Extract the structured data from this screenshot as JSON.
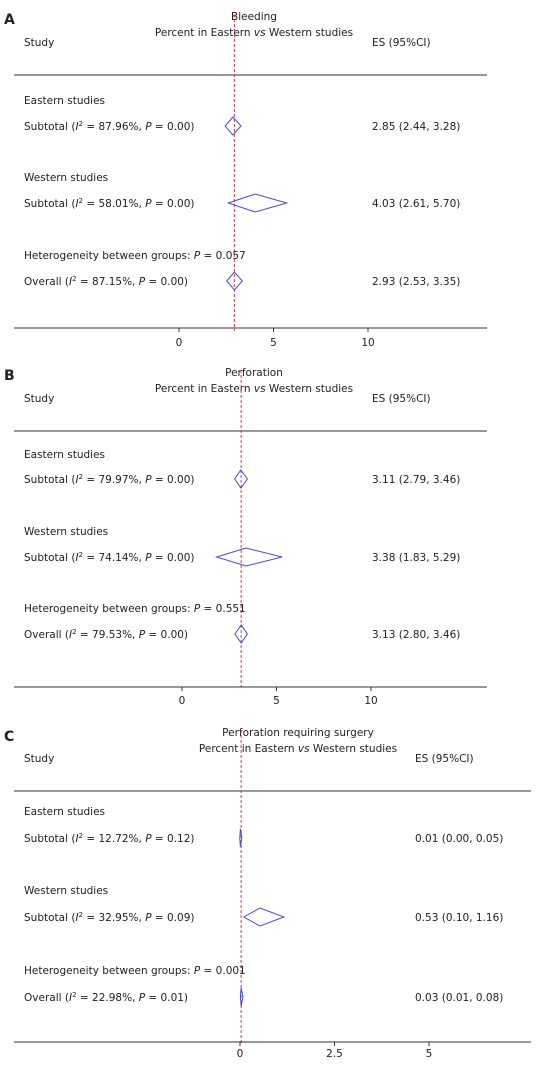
{
  "chart_data": [
    {
      "type": "forest",
      "panel_label": "A",
      "title": "Bleeding",
      "subtitle": "Percent in Eastern vs Western studies",
      "header": {
        "study": "Study",
        "es": "ES (95%CI)"
      },
      "xticks": [
        0,
        5,
        10
      ],
      "xlim": [
        -5.2,
        13.8
      ],
      "null_line": 0,
      "overall_line": 2.93,
      "rows": [
        {
          "kind": "group",
          "label": "Eastern studies"
        },
        {
          "kind": "subtotal",
          "label_pre": "Subtotal (",
          "i2": "I",
          "label_post": " = 87.96%, ",
          "p_label": "P",
          "label_end": " = 0.00)",
          "es": 2.85,
          "lo": 2.44,
          "hi": 3.28,
          "es_text": "2.85 (2.44, 3.28)"
        },
        {
          "kind": "group",
          "label": "Western studies"
        },
        {
          "kind": "subtotal",
          "label_pre": "Subtotal (",
          "i2": "I",
          "label_post": " = 58.01%, ",
          "p_label": "P",
          "label_end": " = 0.00)",
          "es": 4.03,
          "lo": 2.61,
          "hi": 5.7,
          "es_text": "4.03 (2.61, 5.70)"
        },
        {
          "kind": "group",
          "label_pre": "Heterogeneity between groups: ",
          "p_label": "P",
          "label_end": " = 0.057"
        },
        {
          "kind": "subtotal",
          "label_pre": "Overall (",
          "i2": "I",
          "label_post": " = 87.15%, ",
          "p_label": "P",
          "label_end": " = 0.00)",
          "es": 2.93,
          "lo": 2.53,
          "hi": 3.35,
          "es_text": "2.93 (2.53, 3.35)"
        }
      ]
    },
    {
      "type": "forest",
      "panel_label": "B",
      "title": "Perforation",
      "subtitle": "Percent in Eastern vs Western studies",
      "header": {
        "study": "Study",
        "es": "ES (95%CI)"
      },
      "xticks": [
        0,
        5,
        10
      ],
      "xlim": [
        -5.0,
        13.8
      ],
      "null_line": 0,
      "overall_line": 3.13,
      "rows": [
        {
          "kind": "group",
          "label": "Eastern studies"
        },
        {
          "kind": "subtotal",
          "label_pre": "Subtotal (",
          "i2": "I",
          "label_post": " = 79.97%, ",
          "p_label": "P",
          "label_end": " = 0.00)",
          "es": 3.11,
          "lo": 2.79,
          "hi": 3.46,
          "es_text": "3.11 (2.79, 3.46)"
        },
        {
          "kind": "group",
          "label": "Western studies"
        },
        {
          "kind": "subtotal",
          "label_pre": "Subtotal (",
          "i2": "I",
          "label_post": " = 74.14%, ",
          "p_label": "P",
          "label_end": " = 0.00)",
          "es": 3.38,
          "lo": 1.83,
          "hi": 5.29,
          "es_text": "3.38 (1.83, 5.29)"
        },
        {
          "kind": "group",
          "label_pre": "Heterogeneity between groups: ",
          "p_label": "P",
          "label_end": " = 0.551"
        },
        {
          "kind": "subtotal",
          "label_pre": "Overall (",
          "i2": "I",
          "label_post": " = 79.53%, ",
          "p_label": "P",
          "label_end": " = 0.00)",
          "es": 3.13,
          "lo": 2.8,
          "hi": 3.46,
          "es_text": "3.13 (2.80, 3.46)"
        }
      ]
    },
    {
      "type": "forest",
      "panel_label": "C",
      "title": "Perforation requiring surgery",
      "subtitle": "Percent in Eastern vs Western studies",
      "header": {
        "study": "Study",
        "es": "ES (95%CI)"
      },
      "xticks": [
        0,
        2.5,
        5
      ],
      "xticklabels": [
        "0",
        "2.5",
        "5"
      ],
      "xlim": [
        -5.9,
        7.9
      ],
      "null_line": 0,
      "overall_line": 0.03,
      "rows": [
        {
          "kind": "group",
          "label": "Eastern studies"
        },
        {
          "kind": "subtotal",
          "label_pre": "Subtotal (",
          "i2": "I",
          "label_post": " = 12.72%, ",
          "p_label": "P",
          "label_end": " = 0.12)",
          "es": 0.01,
          "lo": 0.0,
          "hi": 0.05,
          "es_text": "0.01 (0.00, 0.05)"
        },
        {
          "kind": "group",
          "label": "Western studies"
        },
        {
          "kind": "subtotal",
          "label_pre": "Subtotal (",
          "i2": "I",
          "label_post": " = 32.95%, ",
          "p_label": "P",
          "label_end": " = 0.09)",
          "es": 0.53,
          "lo": 0.1,
          "hi": 1.16,
          "es_text": "0.53 (0.10, 1.16)"
        },
        {
          "kind": "group",
          "label_pre": "Heterogeneity between groups: ",
          "p_label": "P",
          "label_end": " = 0.001"
        },
        {
          "kind": "subtotal",
          "label_pre": "Overall (",
          "i2": "I",
          "label_post": " = 22.98%, ",
          "p_label": "P",
          "label_end": " = 0.01)",
          "es": 0.03,
          "lo": 0.01,
          "hi": 0.08,
          "es_text": "0.03 (0.01, 0.08)"
        }
      ]
    }
  ],
  "colors": {
    "diamond": "#4a4ad8",
    "overall_line": "#d23b3b",
    "axis": "#333333",
    "text": "#222222"
  }
}
